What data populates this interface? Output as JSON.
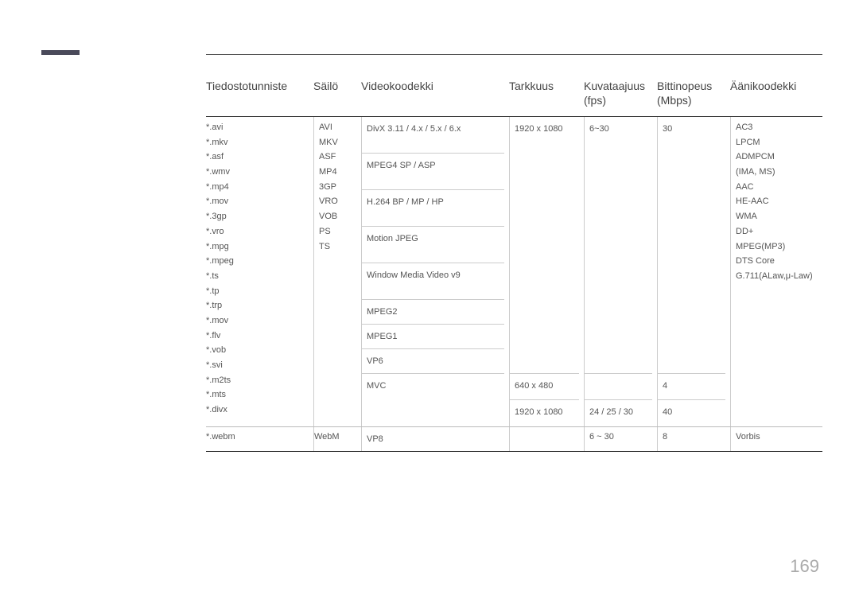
{
  "headers": {
    "ext": "Tiedostotunniste",
    "container": "Säilö",
    "video_codec": "Videokoodekki",
    "resolution": "Tarkkuus",
    "fps_label": "Kuvataajuus",
    "fps_sub": "(fps)",
    "bitrate_label": "Bittinopeus",
    "bitrate_sub": "(Mbps)",
    "audio_codec": "Äänikoodekki"
  },
  "group1": {
    "extensions": [
      "*.avi",
      "*.mkv",
      "*.asf",
      "*.wmv",
      "*.mp4",
      "*.mov",
      "*.3gp",
      "*.vro",
      "*.mpg",
      "*.mpeg",
      "*.ts",
      "*.tp",
      "*.trp",
      "*.mov",
      "*.flv",
      "*.vob",
      "*.svi",
      "*.m2ts",
      "*.mts",
      "*.divx"
    ],
    "containers": [
      "AVI",
      "MKV",
      "ASF",
      "MP4",
      "3GP",
      "VRO",
      "VOB",
      "PS",
      "TS"
    ],
    "codecs": [
      "DivX 3.11 / 4.x / 5.x / 6.x",
      "MPEG4 SP / ASP",
      "H.264 BP / MP / HP",
      "Motion JPEG",
      "Window Media Video v9",
      "MPEG2",
      "MPEG1",
      "VP6",
      "MVC"
    ],
    "resolution_a": "1920 x 1080",
    "resolution_b": "640 x 480",
    "resolution_c": "1920 x 1080",
    "fps_a": "6~30",
    "fps_b": "",
    "fps_c": "24 / 25 / 30",
    "bit_a": "30",
    "bit_b": "4",
    "bit_c": "40",
    "audio": [
      "AC3",
      "LPCM",
      "ADMPCM",
      "(IMA, MS)",
      "AAC",
      "HE-AAC",
      "WMA",
      "DD+",
      "MPEG(MP3)",
      "DTS Core",
      "G.711(ALaw,μ-Law)"
    ]
  },
  "group2": {
    "extensions": "*.webm",
    "containers": "WebM",
    "codec": "VP8",
    "resolution": "",
    "fps": "6 ~ 30",
    "bit": "8",
    "audio": "Vorbis"
  },
  "page_number": "169",
  "colors": {
    "tab": "#4a4a5a",
    "text_header": "#444444",
    "text_body": "#555555",
    "border_dark": "#333333",
    "border_light": "#cccccc",
    "page_num": "#aaaaaa"
  }
}
